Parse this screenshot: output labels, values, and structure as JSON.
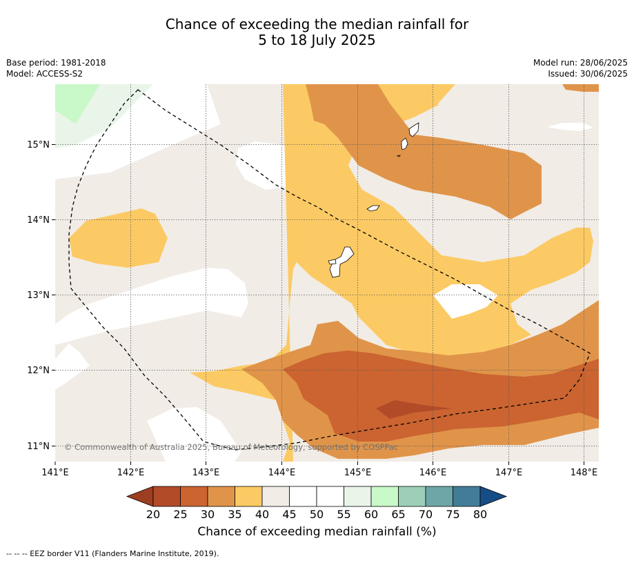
{
  "title": {
    "line1": "Chance of exceeding the median rainfall for",
    "line2": "5 to 18 July 2025"
  },
  "meta": {
    "base_period": "Base period: 1981-2018",
    "model": "Model: ACCESS-S2",
    "model_run": "Model run: 28/06/2025",
    "issued": "Issued: 30/06/2025"
  },
  "map": {
    "lon_ticks": [
      "141°E",
      "142°E",
      "143°E",
      "144°E",
      "145°E",
      "146°E",
      "147°E",
      "148°E"
    ],
    "lat_ticks": [
      "15°N",
      "14°N",
      "13°N",
      "12°N",
      "11°N"
    ],
    "copyright": "© Commonwealth of Australia 2025, Bureau of Meteorology, supported by COSPPac"
  },
  "colorbar": {
    "ticks": [
      "20",
      "25",
      "30",
      "35",
      "40",
      "45",
      "50",
      "55",
      "60",
      "65",
      "70",
      "75",
      "80"
    ],
    "colors": [
      "#b24b28",
      "#cb6430",
      "#e0944a",
      "#fcca64",
      "#f1ece6",
      "#ffffff",
      "#ffffff",
      "#eaf5ea",
      "#c9f8c9",
      "#9dcfb8",
      "#6ea6a8",
      "#427d98"
    ],
    "under_color": "#9e3e20",
    "over_color": "#174d87",
    "label": "Chance of exceeding median rainfall (%)"
  },
  "footer": "--  --  -- EEZ border V11 (Flanders Marine Institute, 2019)."
}
